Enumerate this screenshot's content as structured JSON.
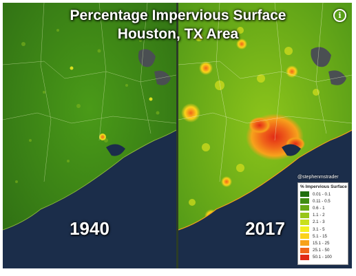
{
  "title_line1": "Percentage Impervious Surface",
  "title_line2": "Houston, TX Area",
  "panels": {
    "left_year": "1940",
    "right_year": "2017"
  },
  "info_symbol": "i",
  "credit": "@stephenmstrader",
  "legend": {
    "title": "% Impervious Surface",
    "items": [
      {
        "label": "0.01 - 0.1",
        "color": "#1f6e0e"
      },
      {
        "label": "0.11 - 0.5",
        "color": "#3f8d12"
      },
      {
        "label": "0.6 - 1",
        "color": "#66a814"
      },
      {
        "label": "1.1 - 2",
        "color": "#97c619"
      },
      {
        "label": "2.1 - 3",
        "color": "#c8e01d"
      },
      {
        "label": "3.1 - 5",
        "color": "#f2f01f"
      },
      {
        "label": "5.1 - 15",
        "color": "#fbd21a"
      },
      {
        "label": "15.1 - 25",
        "color": "#f7a21b"
      },
      {
        "label": "25.1 - 50",
        "color": "#f0661a"
      },
      {
        "label": "50.1 - 100",
        "color": "#e12a16"
      }
    ]
  },
  "colors": {
    "water": "#1b2d4a",
    "land_dark": "#2f6f14",
    "land_mid": "#4f9717",
    "urban": "#f07a1c"
  }
}
